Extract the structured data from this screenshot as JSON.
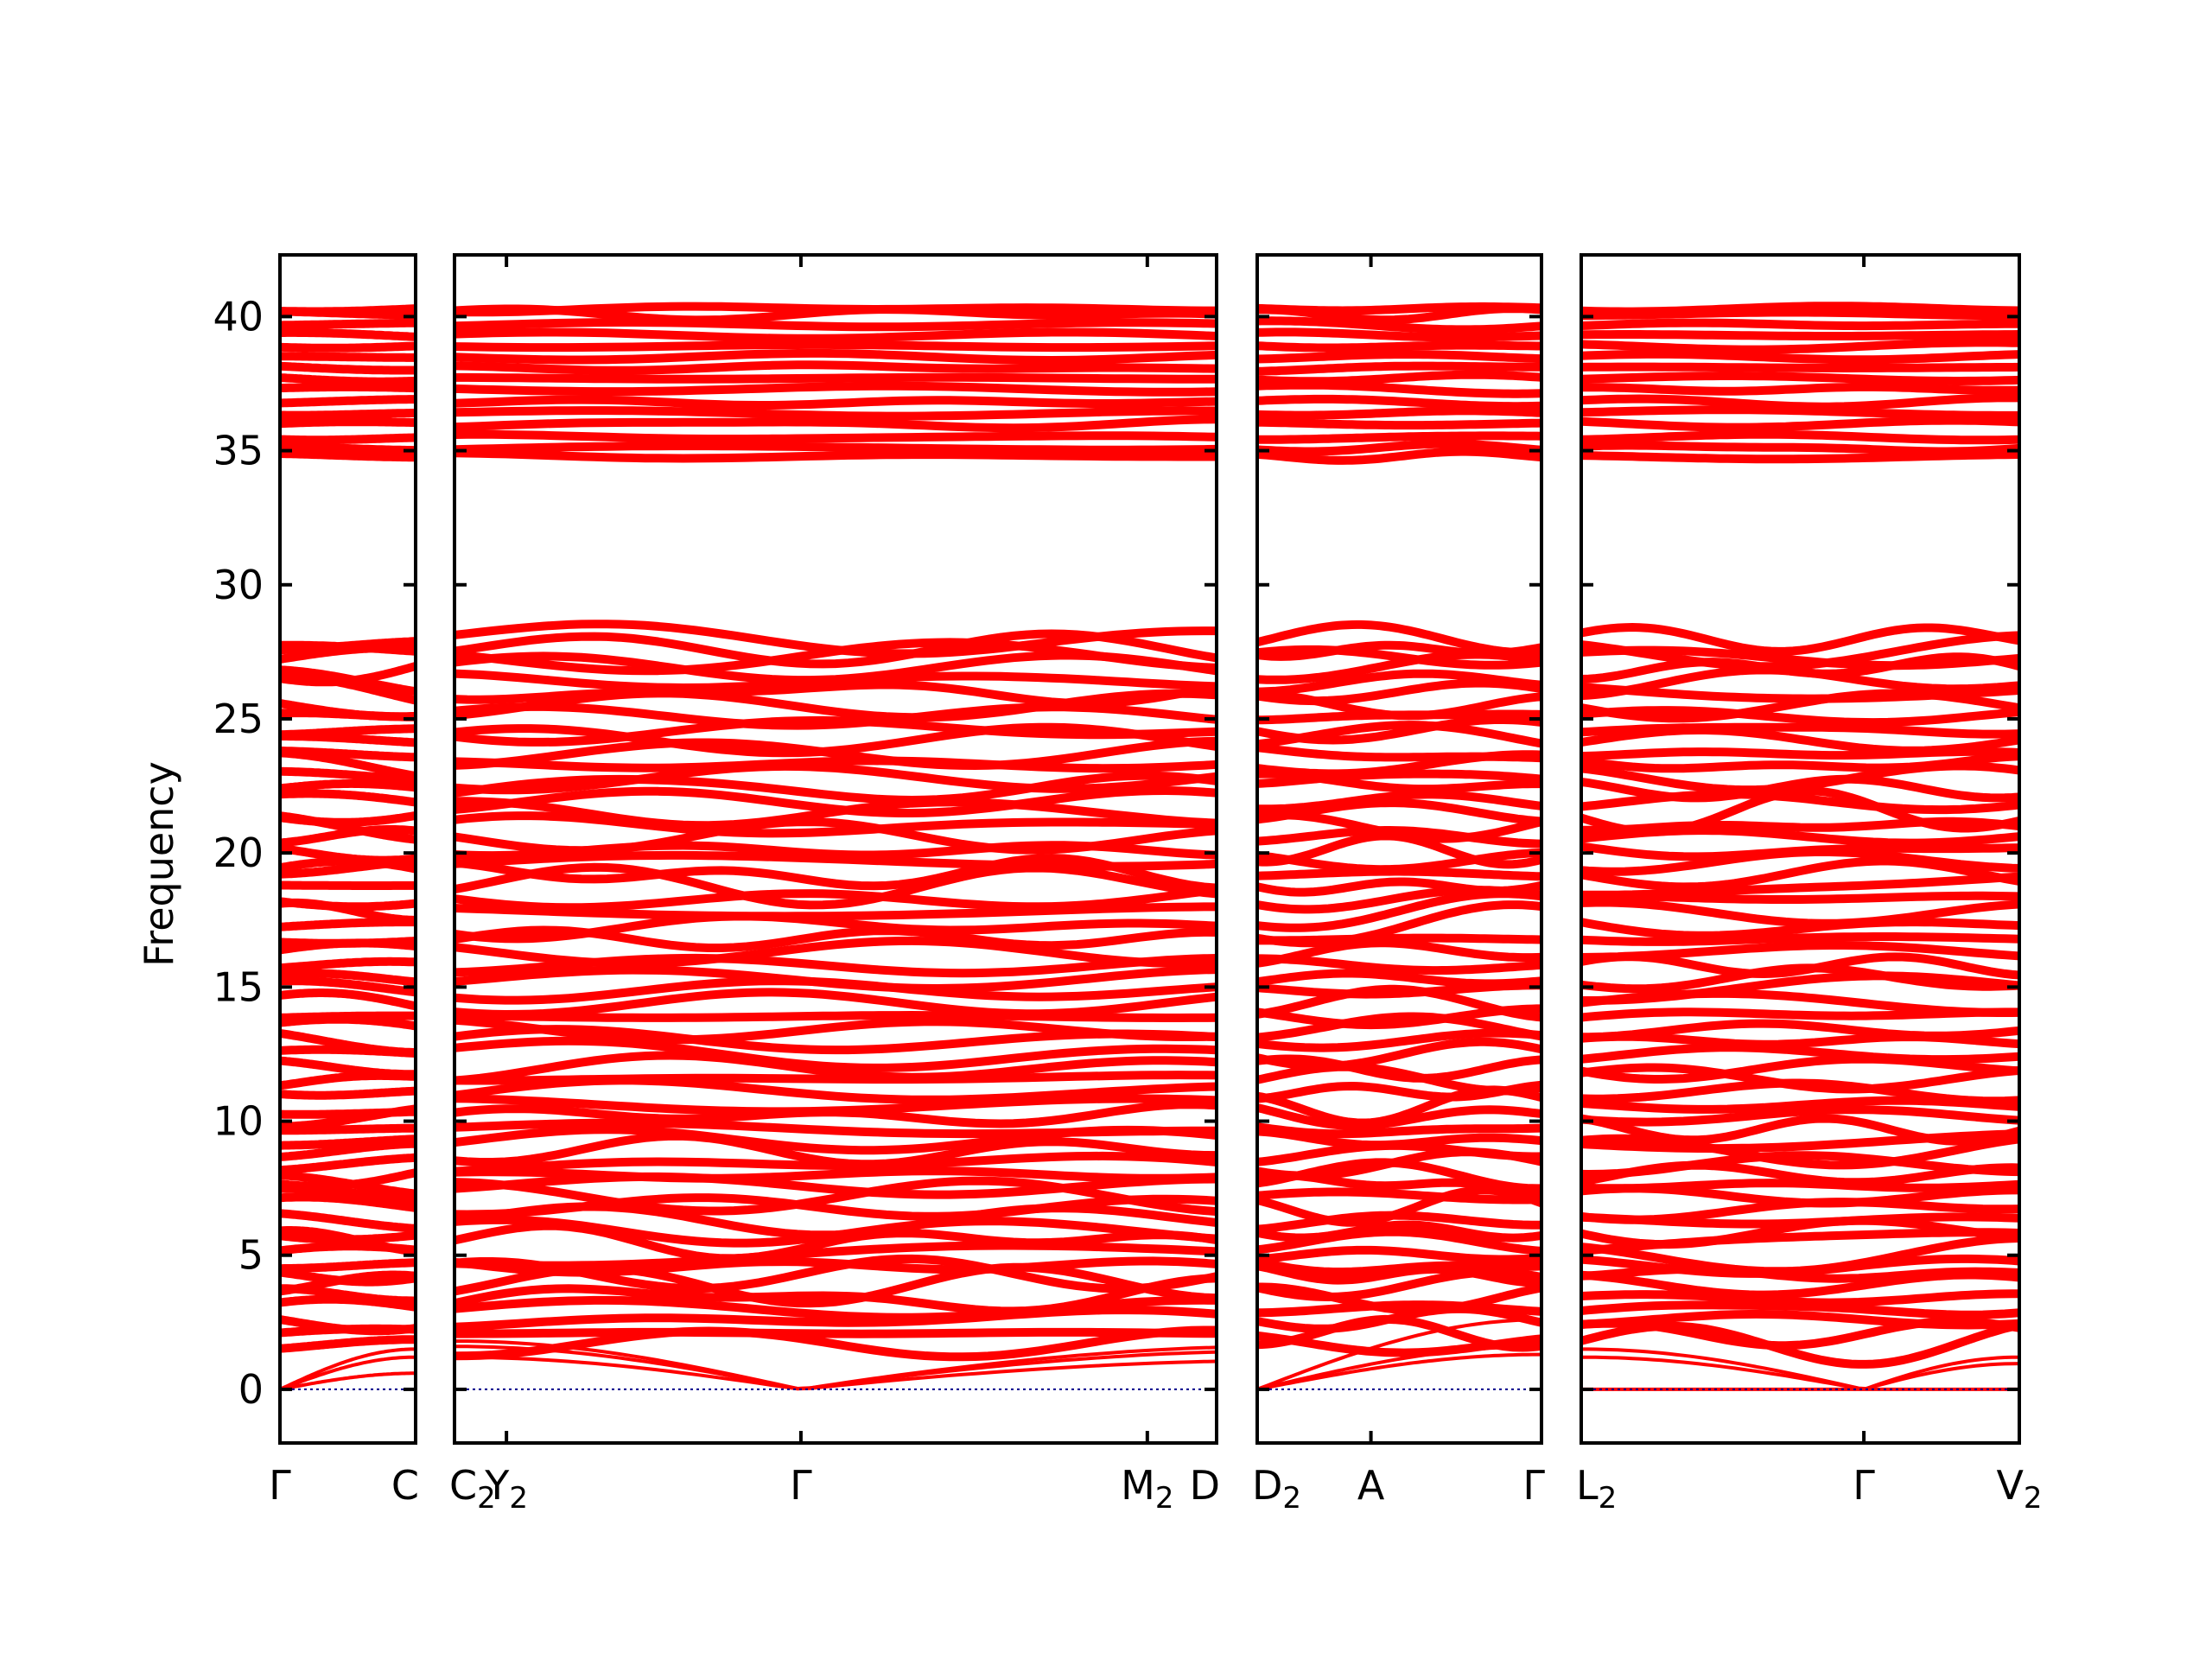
{
  "chart_data": {
    "type": "line",
    "title": "",
    "xlabel": "",
    "ylabel": "Frequency",
    "ylim": [
      -2,
      42.3
    ],
    "yticks": [
      0,
      5,
      10,
      15,
      20,
      25,
      30,
      35,
      40
    ],
    "ytick_labels": [
      "0",
      "5",
      "10",
      "15",
      "20",
      "25",
      "30",
      "35",
      "40"
    ],
    "grid": false,
    "legend": "none",
    "line_color": "#ff0000",
    "zero_line_color": "#00008b",
    "panels": [
      {
        "id": "panel-1",
        "x_range": [
          0,
          1
        ],
        "ticks": [
          {
            "x": 0,
            "label": "Γ",
            "sub": ""
          },
          {
            "x": 1,
            "label": "C",
            "sub": ""
          }
        ]
      },
      {
        "id": "panel-2",
        "x_range": [
          0,
          4.4
        ],
        "ticks": [
          {
            "x": 0,
            "label": "C",
            "sub": "2"
          },
          {
            "x": 0.3,
            "label": "Y",
            "sub": "2"
          },
          {
            "x": 2,
            "label": "Γ",
            "sub": ""
          },
          {
            "x": 4,
            "label": "M",
            "sub": "2"
          },
          {
            "x": 4.4,
            "label": "D",
            "sub": ""
          }
        ]
      },
      {
        "id": "panel-3",
        "x_range": [
          0,
          2.5
        ],
        "ticks": [
          {
            "x": 0,
            "label": "D",
            "sub": "2"
          },
          {
            "x": 1,
            "label": "A",
            "sub": ""
          },
          {
            "x": 2.5,
            "label": "Γ",
            "sub": ""
          }
        ]
      },
      {
        "id": "panel-4",
        "x_range": [
          0,
          3.1
        ],
        "ticks": [
          {
            "x": 0,
            "label": "L",
            "sub": "2"
          },
          {
            "x": 2,
            "label": "Γ",
            "sub": ""
          },
          {
            "x": 3.1,
            "label": "V",
            "sub": "2"
          }
        ]
      }
    ],
    "series": [
      {
        "name": "",
        "group": "acoustic",
        "panel_ends": [
          [
            0,
            0.6
          ],
          [
            1.6,
            0
          ],
          [
            0,
            2.6
          ],
          [
            0,
            1.3
          ]
        ],
        "gamma": 0
      },
      {
        "name": "",
        "group": "acoustic",
        "panel_ends": [
          [
            0,
            1.2
          ],
          [
            1.2,
            0
          ],
          [
            0,
            1.3
          ],
          [
            1.2,
            0
          ]
        ],
        "gamma": 0
      },
      {
        "name": "",
        "group": "acoustic",
        "panel_ends": [
          [
            0,
            1.5
          ],
          [
            1.8,
            0
          ],
          [
            0,
            1.6
          ],
          [
            1.5,
            0
          ]
        ],
        "gamma": 0
      },
      {
        "name": "",
        "group": "optical",
        "levels": [
          1.7,
          2.1,
          2.6,
          3.0,
          3.4,
          3.9,
          4.3,
          4.6,
          5.0,
          5.5,
          5.9,
          6.3,
          6.8,
          7.2,
          7.6,
          8.0,
          8.4,
          8.9,
          9.3,
          9.7,
          10.2,
          10.6,
          11.1,
          11.6,
          12.0,
          12.5,
          13.0,
          13.4,
          13.9,
          14.4,
          14.9,
          15.3,
          15.8,
          16.3,
          16.8,
          17.3,
          17.8,
          18.3,
          18.8,
          19.2,
          19.7,
          20.1,
          20.6,
          21.0,
          21.5,
          21.9,
          22.4,
          22.8,
          23.3,
          23.7,
          24.2,
          24.6,
          25.1,
          25.5,
          26.0,
          26.4,
          26.9,
          27.3,
          27.6,
          28.0
        ],
        "spread": 0.45
      },
      {
        "name": "",
        "group": "high",
        "levels": [
          34.8,
          35.1,
          35.5,
          36.0,
          36.4,
          36.8,
          37.3,
          37.7,
          38.1,
          38.5,
          38.9,
          39.3,
          39.7,
          40.1,
          40.3
        ],
        "spread": 0.12
      }
    ]
  }
}
